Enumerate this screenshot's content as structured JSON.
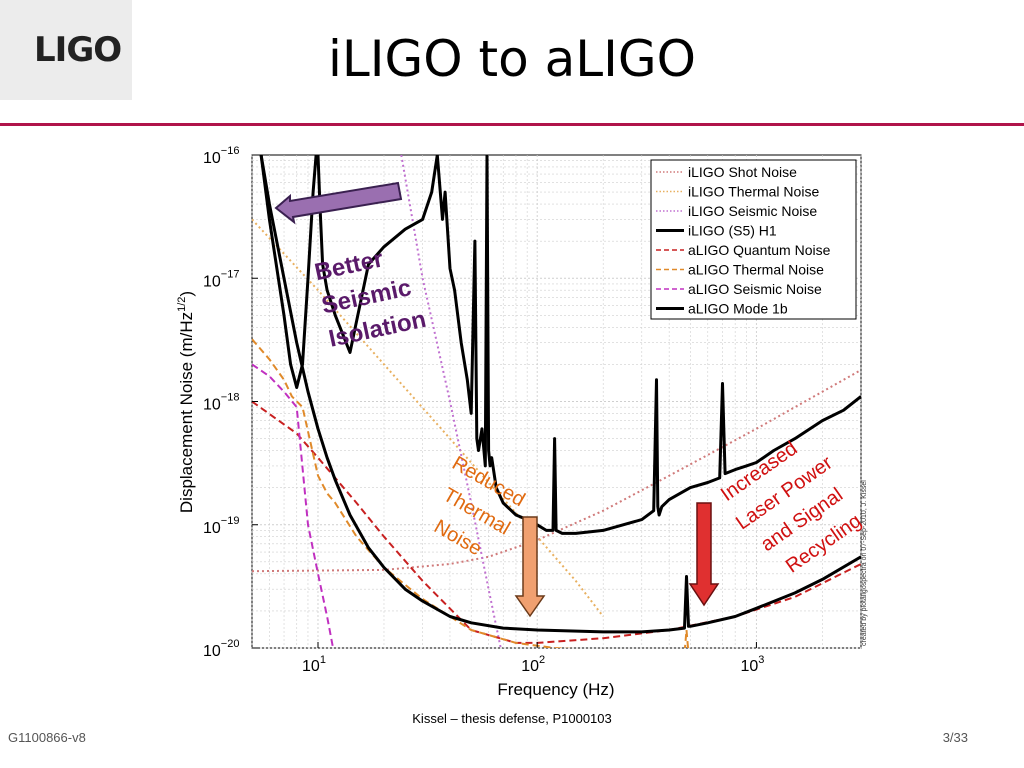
{
  "slide": {
    "title": "iLIGO to aLIGO",
    "logo": "LIGO",
    "footer_left": "G1100866-v8",
    "footer_center": "Kissel – thesis defense, P1000103",
    "page_number": "3/33",
    "credit": "created by plotaligospectra on 07-Sep-2010, J. Kissel"
  },
  "annotations": {
    "seismic": [
      "Better",
      "Seismic",
      "Isolation"
    ],
    "thermal": [
      "Reduced",
      "Thermal",
      "Noise"
    ],
    "quantum": [
      "Increased",
      "Laser Power",
      "and Signal",
      "Recycling"
    ]
  },
  "colors": {
    "accent_rule": "#b0144a",
    "seismic_arrow": "#9a6fb0",
    "thermal_arrow": "#f0a070",
    "quantum_arrow": "#e03030",
    "seismic_text": "#5a1a6a",
    "thermal_text": "#e06a10",
    "quantum_text": "#d01010"
  },
  "chart_data": {
    "type": "line",
    "xscale": "log",
    "yscale": "log",
    "xlim": [
      5,
      3000
    ],
    "ylim": [
      1e-20,
      1e-16
    ],
    "xlabel": "Frequency (Hz)",
    "ylabel": "Displacement Noise (m/Hz^1/2)",
    "grid": true,
    "legend_position": "top-right",
    "x_ticks": [
      {
        "value": 10,
        "base": "10",
        "exp": "1"
      },
      {
        "value": 100,
        "base": "10",
        "exp": "2"
      },
      {
        "value": 1000,
        "base": "10",
        "exp": "3"
      }
    ],
    "y_ticks": [
      {
        "value": 1e-16,
        "base": "10",
        "exp": "−16"
      },
      {
        "value": 1e-17,
        "base": "10",
        "exp": "−17"
      },
      {
        "value": 1e-18,
        "base": "10",
        "exp": "−18"
      },
      {
        "value": 1e-19,
        "base": "10",
        "exp": "−19"
      },
      {
        "value": 1e-20,
        "base": "10",
        "exp": "−20"
      }
    ],
    "series": [
      {
        "name": "iLIGO Shot Noise",
        "color": "#d07a7a",
        "style": "dotted",
        "width": 2,
        "x": [
          5,
          20,
          40,
          60,
          100,
          200,
          400,
          1000,
          3000
        ],
        "y": [
          4.2e-20,
          4.3e-20,
          4.8e-20,
          5.5e-20,
          7.5e-20,
          1.3e-19,
          2.5e-19,
          6e-19,
          1.8e-18
        ]
      },
      {
        "name": "iLIGO Thermal Noise",
        "color": "#e8b060",
        "style": "dotted",
        "width": 2,
        "x": [
          5,
          10,
          20,
          40,
          60,
          100,
          150,
          200
        ],
        "y": [
          3e-17,
          8e-18,
          2e-18,
          5e-19,
          2.2e-19,
          8e-20,
          3.5e-20,
          1.8e-20
        ]
      },
      {
        "name": "iLIGO Seismic Noise",
        "color": "#c070d0",
        "style": "dotted",
        "width": 2,
        "x": [
          24,
          30,
          40,
          50,
          60,
          70
        ],
        "y": [
          1e-16,
          1e-17,
          1e-18,
          1.5e-19,
          3e-20,
          8e-21
        ]
      },
      {
        "name": "iLIGO (S5) H1",
        "color": "#000000",
        "style": "solid",
        "width": 3,
        "x": [
          5.5,
          6,
          7,
          7.5,
          8,
          8.5,
          9,
          9.5,
          9.8,
          10,
          10.2,
          10.5,
          11,
          12,
          14,
          17,
          20,
          25,
          30,
          33,
          35,
          37,
          38,
          40,
          42,
          45,
          48,
          50,
          52,
          53,
          54,
          56,
          58,
          59,
          60,
          61,
          62,
          65,
          70,
          80,
          90,
          100,
          110,
          118,
          120,
          122,
          130,
          150,
          200,
          300,
          340,
          350,
          355,
          360,
          370,
          400,
          500,
          600,
          680,
          700,
          720,
          800,
          900,
          1000,
          1200,
          1500,
          2000,
          2500,
          3000
        ],
        "y": [
          1e-16,
          3e-17,
          5e-18,
          2e-18,
          1.3e-18,
          2e-18,
          1e-17,
          5e-17,
          1e-16,
          1e-16,
          4e-17,
          1.3e-17,
          8e-18,
          5e-18,
          2.5e-18,
          1.3e-17,
          1.8e-17,
          2.5e-17,
          3e-17,
          5e-17,
          1e-16,
          3e-17,
          5e-17,
          1.2e-17,
          8e-18,
          3e-18,
          1.5e-18,
          8e-19,
          2e-17,
          5e-19,
          4e-19,
          6e-19,
          3e-19,
          1e-16,
          4e-19,
          3e-19,
          3.5e-19,
          2e-19,
          1.5e-19,
          1.2e-19,
          1.1e-19,
          1e-19,
          9e-20,
          9e-20,
          5e-19,
          9e-20,
          8.5e-20,
          8.5e-20,
          9e-20,
          1.1e-19,
          1.3e-19,
          1.5e-18,
          1.4e-19,
          1.2e-19,
          1.4e-19,
          1.6e-19,
          2e-19,
          2.2e-19,
          2.4e-19,
          1.4e-18,
          2.6e-19,
          2.8e-19,
          3e-19,
          3.2e-19,
          4e-19,
          5e-19,
          7e-19,
          8.5e-19,
          1.1e-18
        ]
      },
      {
        "name": "aLIGO Quantum Noise",
        "color": "#c82020",
        "style": "dashed",
        "width": 2,
        "x": [
          5,
          8,
          10,
          15,
          20,
          30,
          50,
          80,
          100,
          200,
          400,
          800,
          1500,
          3000
        ],
        "y": [
          1e-18,
          5.5e-19,
          3.5e-19,
          1.5e-19,
          8e-20,
          3.5e-20,
          1.4e-20,
          1.1e-20,
          1.1e-20,
          1.2e-20,
          1.4e-20,
          1.8e-20,
          2.6e-20,
          4.8e-20
        ]
      },
      {
        "name": "aLIGO Thermal Noise",
        "color": "#e08a2a",
        "style": "dashed",
        "width": 2,
        "x": [
          5,
          6,
          7,
          7.6,
          8.5,
          10,
          11,
          12,
          15,
          20,
          30,
          50,
          80,
          120,
          200,
          300,
          470,
          480,
          490,
          500
        ],
        "y": [
          3.2e-18,
          2.2e-18,
          1.5e-18,
          1.1e-18,
          9e-19,
          2.5e-19,
          1.8e-19,
          1.5e-19,
          8e-20,
          4.5e-20,
          2.5e-20,
          1.4e-20,
          1.1e-20,
          1e-20,
          9.5e-21,
          9.5e-21,
          9e-21,
          1.4e-20,
          9e-21,
          9e-21
        ]
      },
      {
        "name": "aLIGO Seismic Noise",
        "color": "#c030c0",
        "style": "dashed",
        "width": 2,
        "x": [
          5,
          6,
          7,
          8,
          9,
          10,
          11,
          12
        ],
        "y": [
          2e-18,
          1.6e-18,
          1.2e-18,
          9e-19,
          1e-19,
          4e-20,
          1.8e-20,
          8e-21
        ]
      },
      {
        "name": "aLIGO Mode 1b",
        "color": "#000000",
        "style": "solid",
        "width": 3,
        "x": [
          5.5,
          6,
          7,
          8,
          9,
          10,
          11,
          12,
          14,
          17,
          20,
          25,
          30,
          40,
          50,
          70,
          100,
          200,
          300,
          400,
          470,
          480,
          490,
          500,
          600,
          800,
          1000,
          1500,
          2000,
          3000
        ],
        "y": [
          1e-16,
          4e-17,
          1e-17,
          3e-18,
          1.2e-18,
          6e-19,
          3.5e-19,
          2.3e-19,
          1.2e-19,
          6.5e-20,
          4.5e-20,
          3e-20,
          2.4e-20,
          1.8e-20,
          1.6e-20,
          1.45e-20,
          1.4e-20,
          1.35e-20,
          1.35e-20,
          1.4e-20,
          1.45e-20,
          3.8e-20,
          1.5e-20,
          1.5e-20,
          1.6e-20,
          1.8e-20,
          2.1e-20,
          2.8e-20,
          3.6e-20,
          5.5e-20
        ]
      }
    ]
  }
}
